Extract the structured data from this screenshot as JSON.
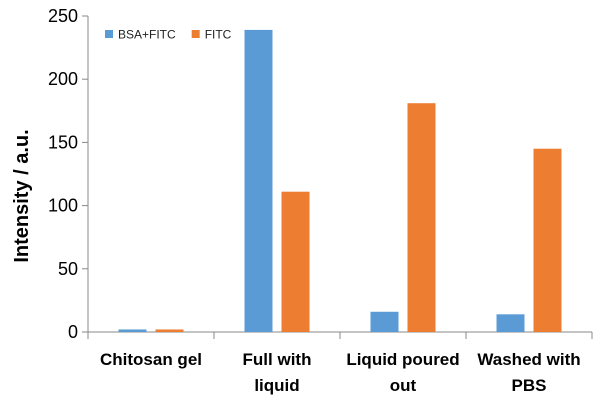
{
  "chart_data": {
    "type": "bar",
    "title": "",
    "xlabel": "",
    "ylabel": "Intensity / a.u.",
    "ylim": [
      0,
      250
    ],
    "yticks": [
      0,
      50,
      100,
      150,
      200,
      250
    ],
    "grid": false,
    "legend_position": "top-left",
    "categories": [
      [
        "Chitosan gel"
      ],
      [
        "Full with",
        "liquid"
      ],
      [
        "Liquid poured",
        "out"
      ],
      [
        "Washed with",
        "PBS"
      ]
    ],
    "series": [
      {
        "name": "BSA+FITC",
        "color": "#5B9BD5",
        "values": [
          2,
          239,
          16,
          14
        ]
      },
      {
        "name": "FITC",
        "color": "#ED7D31",
        "values": [
          2,
          111,
          181,
          145
        ]
      }
    ]
  }
}
